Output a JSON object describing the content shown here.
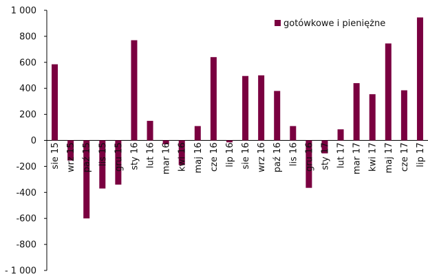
{
  "chart_data": {
    "type": "bar",
    "title": "",
    "xlabel": "",
    "ylabel": "",
    "ylim": [
      -1000,
      1000
    ],
    "yticks": [
      1000,
      800,
      600,
      400,
      200,
      0,
      -200,
      -400,
      -600,
      -800,
      -1000
    ],
    "ytick_labels": [
      "1 000",
      "800",
      "600",
      "400",
      "200",
      "0",
      "-200",
      "-400",
      "-600",
      "-800",
      "- 1 000"
    ],
    "categories": [
      "sie 15",
      "wrz 15",
      "paź 15",
      "lis 15",
      "gru 15",
      "sty 16",
      "lut 16",
      "mar 16",
      "kwi 16",
      "maj 16",
      "cze 16",
      "lip 16",
      "sie 16",
      "wrz 16",
      "paź 16",
      "lis 16",
      "gru 16",
      "sty 17",
      "lut 17",
      "mar 17",
      "kwi 17",
      "maj 17",
      "cze 17",
      "lip 17"
    ],
    "series": [
      {
        "name": "gotówkowe i pieniężne",
        "color": "#7a0040",
        "values": [
          585,
          -155,
          -600,
          -370,
          -340,
          770,
          150,
          -30,
          -190,
          110,
          640,
          -15,
          495,
          500,
          380,
          110,
          -365,
          -100,
          85,
          440,
          355,
          745,
          385,
          945
        ]
      }
    ],
    "legend_position": "top-right",
    "grid": false
  }
}
